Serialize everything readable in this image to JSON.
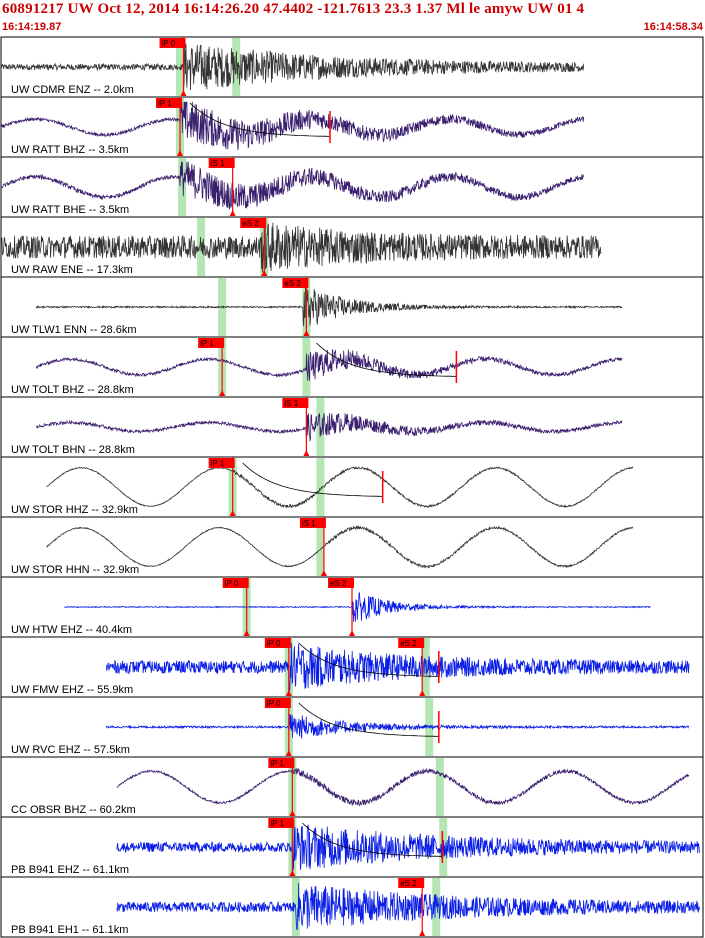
{
  "header": {
    "title": "60891217 UW Oct 12, 2014 16:14:26.20   47.4402 -121.7613 23.3 1.37 Ml le amyw UW 01    4",
    "start_time": "16:14:19.87",
    "end_time": "16:14:58.34"
  },
  "colors": {
    "border": "#000000",
    "pick_box": "#ff0000",
    "pick_text": "#000000",
    "station_label": "#000000",
    "window_shade": "#b4e6b4",
    "theory_curve": "#000000",
    "black_trace": "#333333",
    "purple_trace": "#3a1f6e",
    "blue_trace": "#0a1ee6"
  },
  "chart_data": {
    "type": "seismogram",
    "x_axis": {
      "start": "16:14:19.87",
      "end": "16:14:58.34"
    },
    "traces": [
      {
        "label": "UW CDMR ENZ -- 2.0km",
        "color_key": "black_trace",
        "start": 0.0,
        "end": 0.83,
        "onset": 0.26,
        "decay": 0.22,
        "amp_noise": 0.12,
        "amp_event": 0.9,
        "picks": [
          {
            "label": "iP 0",
            "pos": 0.26
          }
        ],
        "windows": [
          0.255,
          0.335
        ],
        "curve": false,
        "lowfreq": 0
      },
      {
        "label": "UW RATT BHZ -- 3.5km",
        "color_key": "purple_trace",
        "start": 0.0,
        "end": 0.83,
        "onset": 0.255,
        "decay": 0.2,
        "amp_noise": 0.06,
        "amp_event": 0.85,
        "picks": [
          {
            "label": "iP 1",
            "pos": 0.255
          }
        ],
        "windows": [
          0.255
        ],
        "curve": true,
        "lowfreq": 0.35
      },
      {
        "label": "UW RATT BHE -- 3.5km",
        "color_key": "purple_trace",
        "start": 0.0,
        "end": 0.83,
        "onset": 0.255,
        "decay": 0.2,
        "amp_noise": 0.08,
        "amp_event": 0.7,
        "picks": [
          {
            "label": "iS 1",
            "pos": 0.33
          }
        ],
        "windows": [
          0.258
        ],
        "curve": false,
        "lowfreq": 0.45
      },
      {
        "label": "UW RAW ENE -- 17.3km",
        "color_key": "black_trace",
        "start": 0.0,
        "end": 0.855,
        "onset": 0.37,
        "decay": 0.12,
        "amp_noise": 0.45,
        "amp_event": 0.65,
        "picks": [
          {
            "label": "eS 2",
            "pos": 0.375
          }
        ],
        "windows": [
          0.285,
          0.375
        ],
        "curve": false,
        "lowfreq": 0
      },
      {
        "label": "UW TLW1 ENN -- 28.6km",
        "color_key": "black_trace",
        "start": 0.05,
        "end": 0.885,
        "onset": 0.43,
        "decay": 0.06,
        "amp_noise": 0.03,
        "amp_event": 0.95,
        "picks": [
          {
            "label": "eS 2",
            "pos": 0.435
          }
        ],
        "windows": [
          0.315,
          0.435
        ],
        "curve": false,
        "lowfreq": 0
      },
      {
        "label": "UW TOLT BHZ -- 28.8km",
        "color_key": "purple_trace",
        "start": 0.05,
        "end": 0.885,
        "onset": 0.435,
        "decay": 0.1,
        "amp_noise": 0.06,
        "amp_event": 0.6,
        "picks": [
          {
            "label": "iP 1",
            "pos": 0.315
          }
        ],
        "windows": [
          0.315,
          0.435
        ],
        "curve": true,
        "lowfreq": 0.35
      },
      {
        "label": "UW TOLT BHN -- 28.8km",
        "color_key": "purple_trace",
        "start": 0.05,
        "end": 0.885,
        "onset": 0.435,
        "decay": 0.1,
        "amp_noise": 0.06,
        "amp_event": 0.55,
        "picks": [
          {
            "label": "iS 1",
            "pos": 0.435
          }
        ],
        "windows": [
          0.455
        ],
        "curve": false,
        "lowfreq": 0.2
      },
      {
        "label": "UW STOR HHZ -- 32.9km",
        "color_key": "black_trace",
        "start": 0.065,
        "end": 0.9,
        "onset": 0.33,
        "decay": 0.3,
        "amp_noise": 0.02,
        "amp_event": 0.05,
        "picks": [
          {
            "label": "iP 1",
            "pos": 0.33
          }
        ],
        "windows": [
          0.33,
          0.455
        ],
        "curve": true,
        "lowfreq": 0.85
      },
      {
        "label": "UW STOR HHN -- 32.9km",
        "color_key": "black_trace",
        "start": 0.065,
        "end": 0.9,
        "onset": 0.46,
        "decay": 0.3,
        "amp_noise": 0.02,
        "amp_event": 0.05,
        "picks": [
          {
            "label": "iS 1",
            "pos": 0.46
          }
        ],
        "windows": [
          0.455
        ],
        "curve": false,
        "lowfreq": 0.85
      },
      {
        "label": "UW HTW EHZ -- 40.4km",
        "color_key": "blue_trace",
        "start": 0.09,
        "end": 0.925,
        "onset": 0.5,
        "decay": 0.05,
        "amp_noise": 0.02,
        "amp_event": 0.7,
        "picks": [
          {
            "label": "iP 0",
            "pos": 0.35
          },
          {
            "label": "eS 2",
            "pos": 0.5
          }
        ],
        "windows": [
          0.35
        ],
        "curve": false,
        "lowfreq": 0
      },
      {
        "label": "UW FMW EHZ -- 55.9km",
        "color_key": "blue_trace",
        "start": 0.15,
        "end": 0.98,
        "onset": 0.41,
        "decay": 0.15,
        "amp_noise": 0.25,
        "amp_event": 0.75,
        "picks": [
          {
            "label": "iP 0",
            "pos": 0.41
          },
          {
            "label": "eS 2",
            "pos": 0.6
          }
        ],
        "windows": [
          0.41,
          0.605
        ],
        "curve": true,
        "lowfreq": 0
      },
      {
        "label": "UW RVC EHZ -- 57.5km",
        "color_key": "blue_trace",
        "start": 0.15,
        "end": 0.98,
        "onset": 0.41,
        "decay": 0.08,
        "amp_noise": 0.04,
        "amp_event": 0.55,
        "picks": [
          {
            "label": "iP 0",
            "pos": 0.41
          }
        ],
        "windows": [
          0.41,
          0.61
        ],
        "curve": true,
        "lowfreq": 0
      },
      {
        "label": "CC OBSR BHZ -- 60.2km",
        "color_key": "purple_trace",
        "start": 0.165,
        "end": 0.98,
        "onset": 0.415,
        "decay": 0.3,
        "amp_noise": 0.04,
        "amp_event": 0.1,
        "picks": [
          {
            "label": "iP 1",
            "pos": 0.415
          }
        ],
        "windows": [
          0.415,
          0.625
        ],
        "curve": false,
        "lowfreq": 0.7
      },
      {
        "label": "PB B941 EHZ -- 61.1km",
        "color_key": "blue_trace",
        "start": 0.165,
        "end": 0.995,
        "onset": 0.415,
        "decay": 0.2,
        "amp_noise": 0.2,
        "amp_event": 0.8,
        "picks": [
          {
            "label": "iP 1",
            "pos": 0.415
          }
        ],
        "windows": [
          0.415,
          0.63
        ],
        "curve": true,
        "lowfreq": 0
      },
      {
        "label": "PB B941 EH1 -- 61.1km",
        "color_key": "blue_trace",
        "start": 0.165,
        "end": 0.995,
        "onset": 0.42,
        "decay": 0.2,
        "amp_noise": 0.2,
        "amp_event": 0.8,
        "picks": [
          {
            "label": "eS 2",
            "pos": 0.6
          }
        ],
        "windows": [
          0.42,
          0.62
        ],
        "curve": false,
        "lowfreq": 0
      }
    ]
  }
}
